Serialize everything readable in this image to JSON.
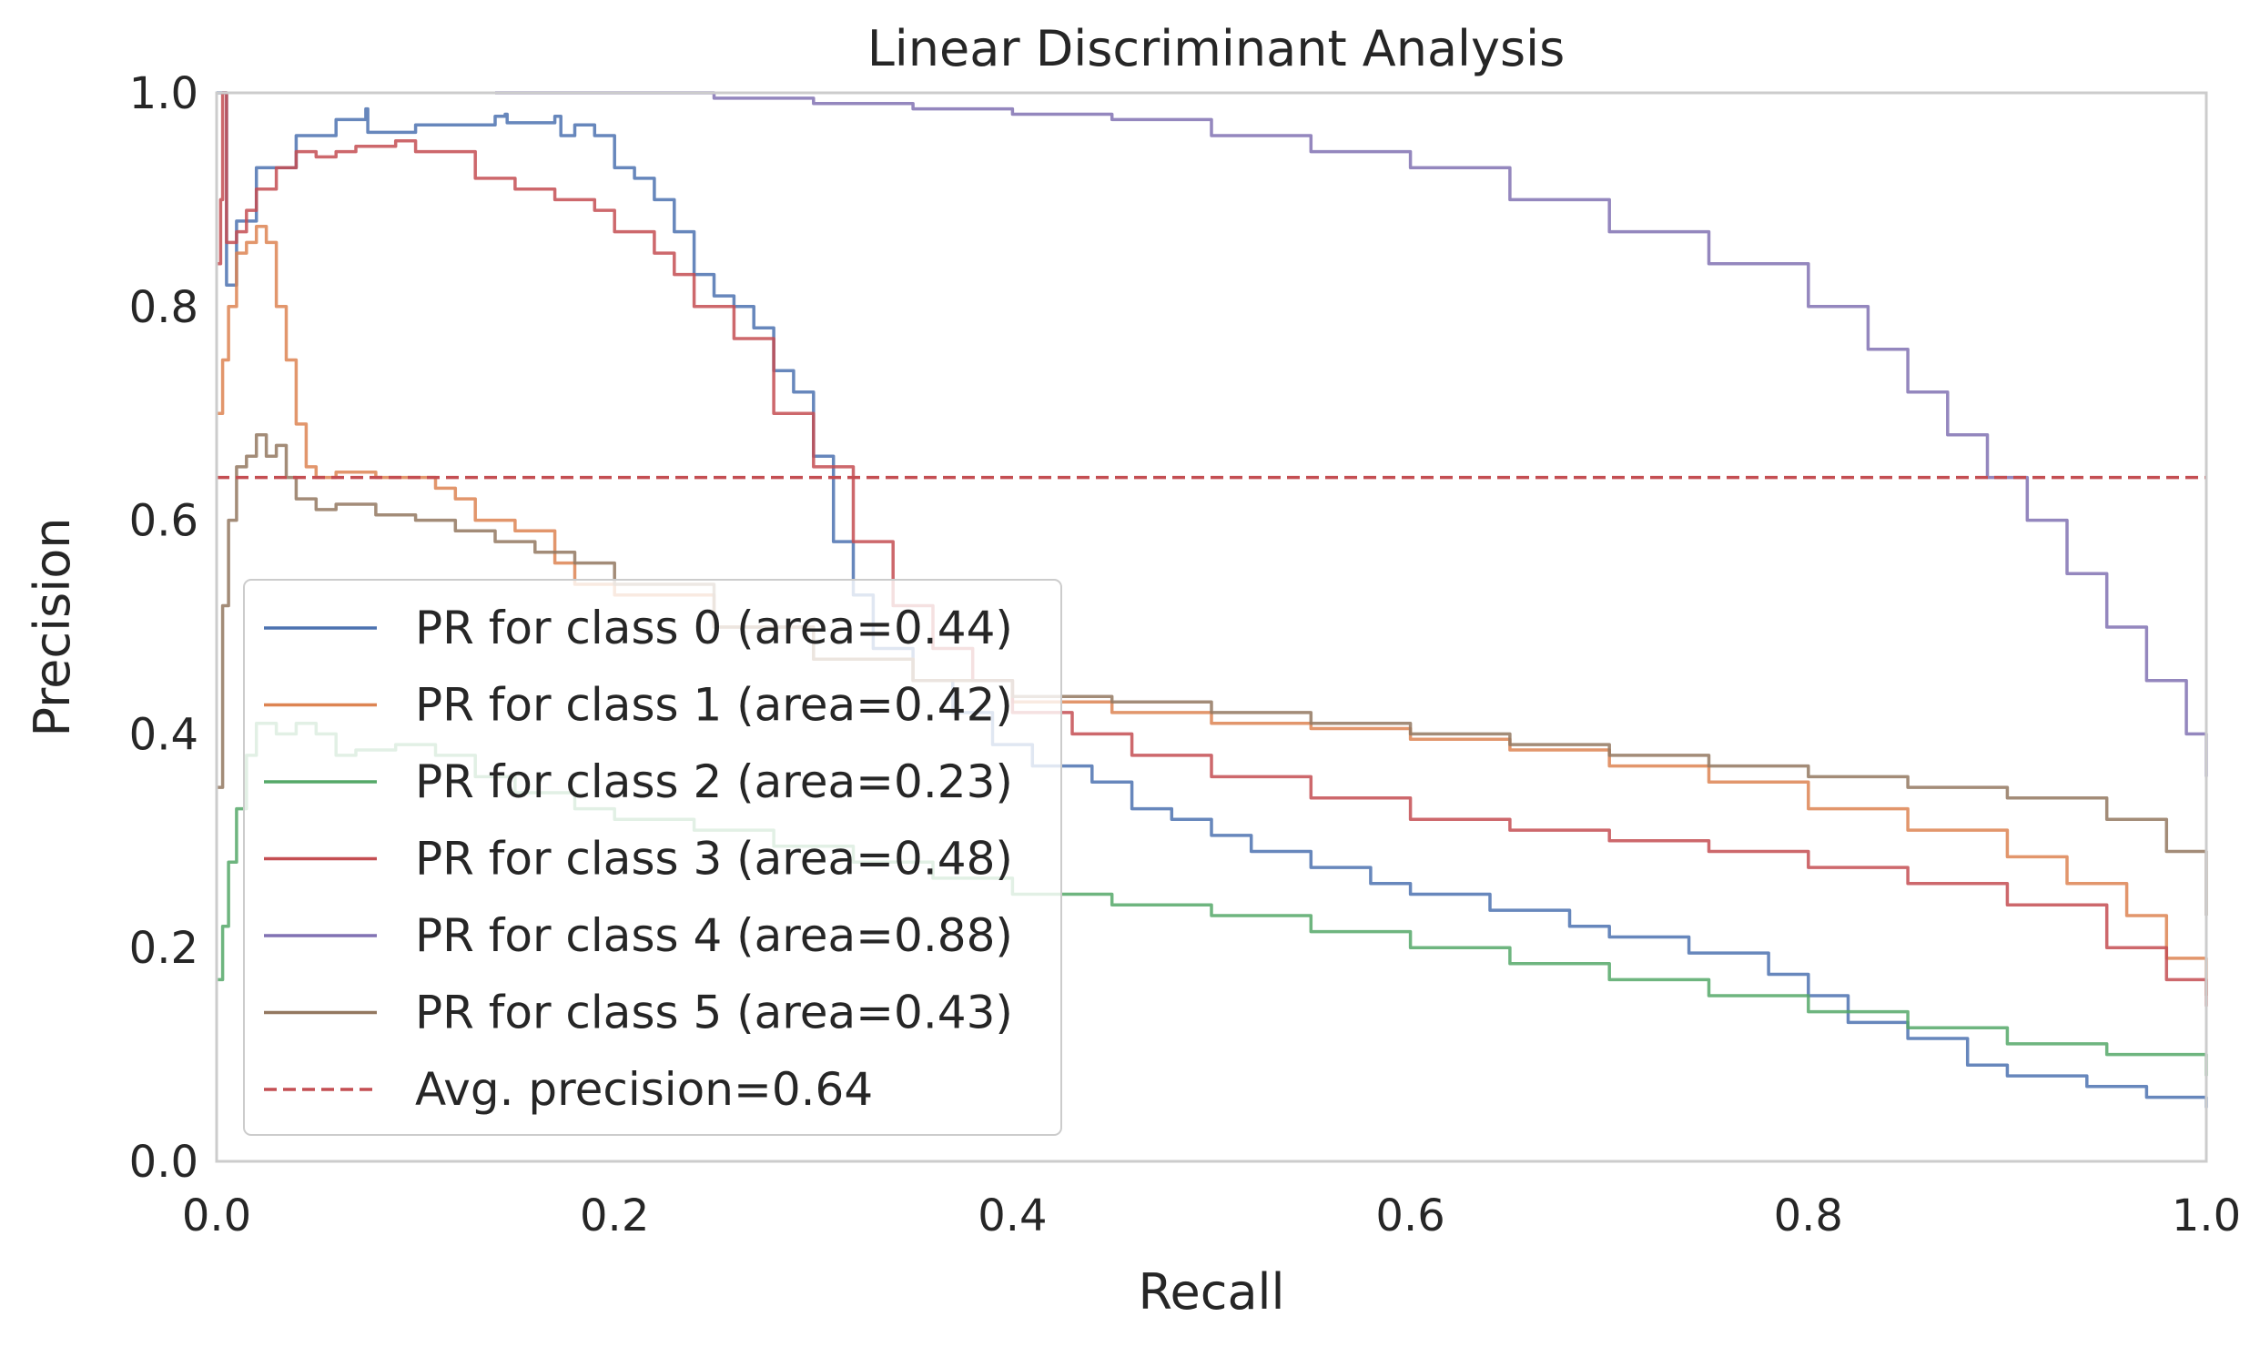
{
  "chart_data": {
    "type": "line",
    "title": "Linear Discriminant Analysis",
    "xlabel": "Recall",
    "ylabel": "Precision",
    "xlim": [
      0.0,
      1.0
    ],
    "ylim": [
      0.0,
      1.0
    ],
    "grid": false,
    "legend_position": "lower-left",
    "x_ticks": [
      "0.0",
      "0.2",
      "0.4",
      "0.6",
      "0.8",
      "1.0"
    ],
    "y_ticks": [
      "0.0",
      "0.2",
      "0.4",
      "0.6",
      "0.8",
      "1.0"
    ],
    "series": [
      {
        "name": "PR for class 0 (area=0.44)",
        "color": "#4c72b0",
        "points": [
          [
            0.0,
            1.0
          ],
          [
            0.005,
            0.82
          ],
          [
            0.01,
            0.88
          ],
          [
            0.02,
            0.93
          ],
          [
            0.04,
            0.96
          ],
          [
            0.06,
            0.975
          ],
          [
            0.075,
            0.985
          ],
          [
            0.076,
            0.963
          ],
          [
            0.1,
            0.97
          ],
          [
            0.14,
            0.978
          ],
          [
            0.145,
            0.98
          ],
          [
            0.146,
            0.972
          ],
          [
            0.17,
            0.978
          ],
          [
            0.173,
            0.96
          ],
          [
            0.18,
            0.97
          ],
          [
            0.19,
            0.96
          ],
          [
            0.2,
            0.93
          ],
          [
            0.21,
            0.92
          ],
          [
            0.22,
            0.9
          ],
          [
            0.23,
            0.87
          ],
          [
            0.24,
            0.83
          ],
          [
            0.25,
            0.81
          ],
          [
            0.26,
            0.8
          ],
          [
            0.27,
            0.78
          ],
          [
            0.28,
            0.74
          ],
          [
            0.29,
            0.72
          ],
          [
            0.3,
            0.66
          ],
          [
            0.31,
            0.58
          ],
          [
            0.32,
            0.53
          ],
          [
            0.33,
            0.48
          ],
          [
            0.35,
            0.45
          ],
          [
            0.37,
            0.42
          ],
          [
            0.39,
            0.39
          ],
          [
            0.41,
            0.37
          ],
          [
            0.44,
            0.355
          ],
          [
            0.46,
            0.33
          ],
          [
            0.48,
            0.32
          ],
          [
            0.5,
            0.305
          ],
          [
            0.52,
            0.29
          ],
          [
            0.55,
            0.275
          ],
          [
            0.58,
            0.26
          ],
          [
            0.6,
            0.25
          ],
          [
            0.64,
            0.235
          ],
          [
            0.68,
            0.22
          ],
          [
            0.7,
            0.21
          ],
          [
            0.74,
            0.195
          ],
          [
            0.78,
            0.175
          ],
          [
            0.8,
            0.155
          ],
          [
            0.82,
            0.13
          ],
          [
            0.85,
            0.115
          ],
          [
            0.88,
            0.09
          ],
          [
            0.9,
            0.08
          ],
          [
            0.94,
            0.07
          ],
          [
            0.97,
            0.06
          ],
          [
            1.0,
            0.05
          ]
        ]
      },
      {
        "name": "PR for class 1 (area=0.42)",
        "color": "#dd8452",
        "points": [
          [
            0.0,
            0.7
          ],
          [
            0.003,
            0.75
          ],
          [
            0.006,
            0.8
          ],
          [
            0.01,
            0.85
          ],
          [
            0.015,
            0.86
          ],
          [
            0.02,
            0.875
          ],
          [
            0.025,
            0.86
          ],
          [
            0.03,
            0.8
          ],
          [
            0.035,
            0.75
          ],
          [
            0.04,
            0.69
          ],
          [
            0.045,
            0.65
          ],
          [
            0.05,
            0.64
          ],
          [
            0.06,
            0.645
          ],
          [
            0.08,
            0.64
          ],
          [
            0.1,
            0.64
          ],
          [
            0.11,
            0.63
          ],
          [
            0.12,
            0.62
          ],
          [
            0.13,
            0.6
          ],
          [
            0.15,
            0.59
          ],
          [
            0.17,
            0.56
          ],
          [
            0.18,
            0.54
          ],
          [
            0.2,
            0.53
          ],
          [
            0.25,
            0.5
          ],
          [
            0.3,
            0.47
          ],
          [
            0.35,
            0.45
          ],
          [
            0.4,
            0.43
          ],
          [
            0.45,
            0.42
          ],
          [
            0.5,
            0.41
          ],
          [
            0.55,
            0.405
          ],
          [
            0.6,
            0.395
          ],
          [
            0.65,
            0.385
          ],
          [
            0.7,
            0.37
          ],
          [
            0.75,
            0.355
          ],
          [
            0.8,
            0.33
          ],
          [
            0.85,
            0.31
          ],
          [
            0.9,
            0.285
          ],
          [
            0.93,
            0.26
          ],
          [
            0.96,
            0.23
          ],
          [
            0.98,
            0.19
          ],
          [
            1.0,
            0.155
          ]
        ]
      },
      {
        "name": "PR for class 2 (area=0.23)",
        "color": "#55a868",
        "points": [
          [
            0.0,
            0.17
          ],
          [
            0.003,
            0.22
          ],
          [
            0.006,
            0.28
          ],
          [
            0.01,
            0.33
          ],
          [
            0.015,
            0.38
          ],
          [
            0.02,
            0.41
          ],
          [
            0.03,
            0.4
          ],
          [
            0.04,
            0.41
          ],
          [
            0.05,
            0.4
          ],
          [
            0.06,
            0.38
          ],
          [
            0.07,
            0.385
          ],
          [
            0.09,
            0.39
          ],
          [
            0.11,
            0.38
          ],
          [
            0.13,
            0.36
          ],
          [
            0.15,
            0.345
          ],
          [
            0.18,
            0.33
          ],
          [
            0.2,
            0.32
          ],
          [
            0.24,
            0.31
          ],
          [
            0.28,
            0.295
          ],
          [
            0.32,
            0.28
          ],
          [
            0.36,
            0.265
          ],
          [
            0.4,
            0.25
          ],
          [
            0.45,
            0.24
          ],
          [
            0.5,
            0.23
          ],
          [
            0.55,
            0.215
          ],
          [
            0.6,
            0.2
          ],
          [
            0.65,
            0.185
          ],
          [
            0.7,
            0.17
          ],
          [
            0.75,
            0.155
          ],
          [
            0.8,
            0.14
          ],
          [
            0.85,
            0.125
          ],
          [
            0.9,
            0.11
          ],
          [
            0.95,
            0.1
          ],
          [
            1.0,
            0.08
          ]
        ]
      },
      {
        "name": "PR for class 3 (area=0.48)",
        "color": "#c44e52",
        "points": [
          [
            0.0,
            0.84
          ],
          [
            0.002,
            0.9
          ],
          [
            0.003,
            1.0
          ],
          [
            0.005,
            0.86
          ],
          [
            0.01,
            0.87
          ],
          [
            0.015,
            0.89
          ],
          [
            0.02,
            0.91
          ],
          [
            0.03,
            0.93
          ],
          [
            0.04,
            0.945
          ],
          [
            0.05,
            0.94
          ],
          [
            0.06,
            0.945
          ],
          [
            0.07,
            0.95
          ],
          [
            0.08,
            0.95
          ],
          [
            0.09,
            0.955
          ],
          [
            0.1,
            0.945
          ],
          [
            0.12,
            0.945
          ],
          [
            0.13,
            0.92
          ],
          [
            0.15,
            0.91
          ],
          [
            0.17,
            0.9
          ],
          [
            0.19,
            0.89
          ],
          [
            0.2,
            0.87
          ],
          [
            0.22,
            0.85
          ],
          [
            0.23,
            0.83
          ],
          [
            0.24,
            0.8
          ],
          [
            0.26,
            0.77
          ],
          [
            0.28,
            0.7
          ],
          [
            0.3,
            0.65
          ],
          [
            0.32,
            0.58
          ],
          [
            0.34,
            0.52
          ],
          [
            0.36,
            0.48
          ],
          [
            0.38,
            0.45
          ],
          [
            0.4,
            0.42
          ],
          [
            0.43,
            0.4
          ],
          [
            0.46,
            0.38
          ],
          [
            0.5,
            0.36
          ],
          [
            0.55,
            0.34
          ],
          [
            0.6,
            0.32
          ],
          [
            0.65,
            0.31
          ],
          [
            0.7,
            0.3
          ],
          [
            0.75,
            0.29
          ],
          [
            0.8,
            0.275
          ],
          [
            0.85,
            0.26
          ],
          [
            0.9,
            0.24
          ],
          [
            0.95,
            0.2
          ],
          [
            0.98,
            0.17
          ],
          [
            1.0,
            0.145
          ]
        ]
      },
      {
        "name": "PR for class 4 (area=0.88)",
        "color": "#8172b3",
        "points": [
          [
            0.14,
            1.0
          ],
          [
            0.2,
            1.0
          ],
          [
            0.25,
            0.995
          ],
          [
            0.3,
            0.99
          ],
          [
            0.35,
            0.985
          ],
          [
            0.4,
            0.98
          ],
          [
            0.45,
            0.975
          ],
          [
            0.5,
            0.96
          ],
          [
            0.55,
            0.945
          ],
          [
            0.6,
            0.93
          ],
          [
            0.65,
            0.9
          ],
          [
            0.7,
            0.87
          ],
          [
            0.75,
            0.84
          ],
          [
            0.8,
            0.8
          ],
          [
            0.83,
            0.76
          ],
          [
            0.85,
            0.72
          ],
          [
            0.87,
            0.68
          ],
          [
            0.89,
            0.64
          ],
          [
            0.91,
            0.6
          ],
          [
            0.93,
            0.55
          ],
          [
            0.95,
            0.5
          ],
          [
            0.97,
            0.45
          ],
          [
            0.99,
            0.4
          ],
          [
            1.0,
            0.36
          ]
        ]
      },
      {
        "name": "PR for class 5 (area=0.43)",
        "color": "#937860",
        "points": [
          [
            0.0,
            0.35
          ],
          [
            0.003,
            0.52
          ],
          [
            0.006,
            0.6
          ],
          [
            0.01,
            0.65
          ],
          [
            0.015,
            0.66
          ],
          [
            0.02,
            0.68
          ],
          [
            0.025,
            0.66
          ],
          [
            0.03,
            0.67
          ],
          [
            0.035,
            0.64
          ],
          [
            0.04,
            0.62
          ],
          [
            0.05,
            0.61
          ],
          [
            0.06,
            0.615
          ],
          [
            0.08,
            0.605
          ],
          [
            0.1,
            0.6
          ],
          [
            0.12,
            0.59
          ],
          [
            0.14,
            0.58
          ],
          [
            0.16,
            0.57
          ],
          [
            0.18,
            0.56
          ],
          [
            0.2,
            0.54
          ],
          [
            0.25,
            0.5
          ],
          [
            0.3,
            0.47
          ],
          [
            0.35,
            0.45
          ],
          [
            0.4,
            0.435
          ],
          [
            0.45,
            0.43
          ],
          [
            0.5,
            0.42
          ],
          [
            0.55,
            0.41
          ],
          [
            0.6,
            0.4
          ],
          [
            0.65,
            0.39
          ],
          [
            0.7,
            0.38
          ],
          [
            0.75,
            0.37
          ],
          [
            0.8,
            0.36
          ],
          [
            0.85,
            0.35
          ],
          [
            0.9,
            0.34
          ],
          [
            0.95,
            0.32
          ],
          [
            0.98,
            0.29
          ],
          [
            1.0,
            0.23
          ]
        ]
      }
    ],
    "reference_line": {
      "name": "Avg. precision=0.64",
      "y": 0.64,
      "color": "#c44e52",
      "style": "dashed"
    }
  }
}
